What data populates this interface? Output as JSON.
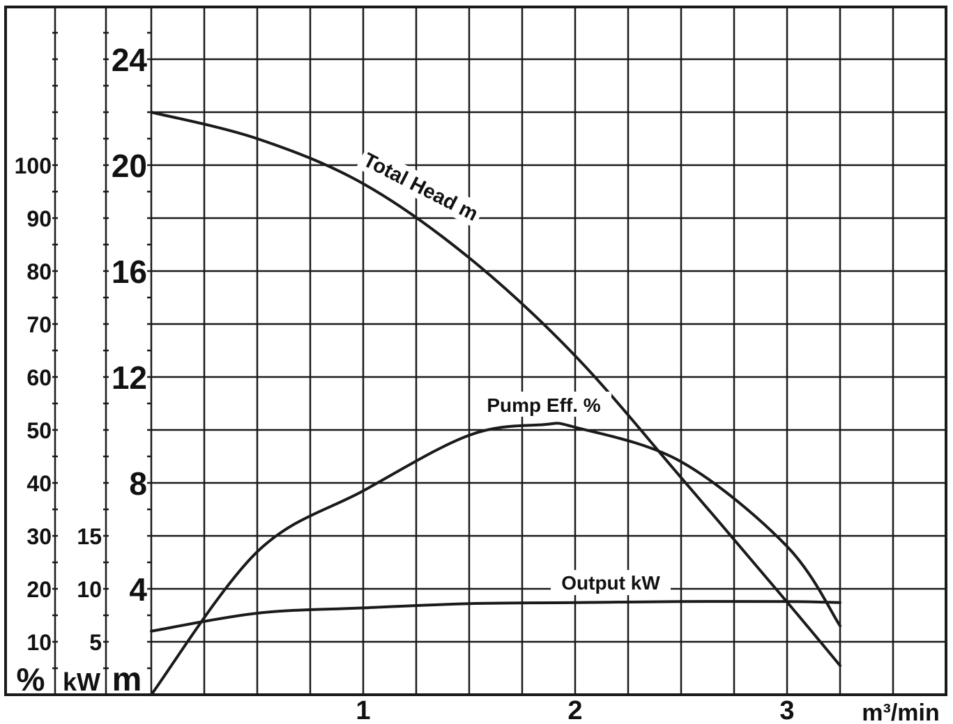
{
  "chart_data": {
    "type": "line",
    "x_unit_label": "m³/min",
    "x_ticks": [
      "1",
      "2",
      "3"
    ],
    "xlim": [
      0,
      3.65
    ],
    "axes": {
      "head": {
        "unit_label": "m",
        "ticks": [
          "4",
          "8",
          "12",
          "16",
          "20",
          "24"
        ],
        "ylim": [
          0,
          26
        ]
      },
      "power": {
        "unit_label": "kW",
        "ticks": [
          "5",
          "10",
          "15"
        ],
        "ylim": [
          0,
          65
        ]
      },
      "efficiency": {
        "unit_label": "%",
        "ticks": [
          "10",
          "20",
          "30",
          "40",
          "50",
          "60",
          "70",
          "80",
          "90",
          "100"
        ],
        "ylim": [
          0,
          130
        ]
      }
    },
    "grid": true,
    "series": [
      {
        "name": "Total Head m",
        "axis": "head",
        "x": [
          0,
          0.5,
          1.0,
          1.5,
          2.0,
          2.5,
          3.0,
          3.25
        ],
        "values": [
          22.0,
          21.0,
          19.3,
          16.5,
          12.8,
          8.2,
          3.5,
          1.1
        ]
      },
      {
        "name": "Pump Eff. %",
        "axis": "efficiency",
        "x": [
          0,
          0.5,
          1.0,
          1.5,
          1.85,
          2.0,
          2.5,
          3.0,
          3.25
        ],
        "values": [
          0,
          27,
          38.5,
          49,
          51,
          50.5,
          44,
          28,
          13
        ]
      },
      {
        "name": "Output kW",
        "axis": "power",
        "x": [
          0,
          0.5,
          1.0,
          1.5,
          2.0,
          2.5,
          3.0,
          3.25
        ],
        "values": [
          6.0,
          7.7,
          8.2,
          8.6,
          8.7,
          8.8,
          8.8,
          8.7
        ]
      }
    ]
  }
}
